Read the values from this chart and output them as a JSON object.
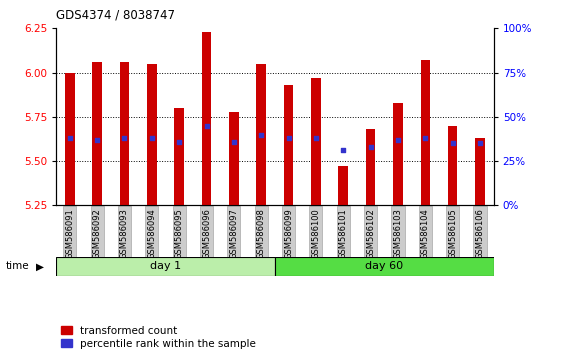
{
  "title": "GDS4374 / 8038747",
  "samples": [
    "GSM586091",
    "GSM586092",
    "GSM586093",
    "GSM586094",
    "GSM586095",
    "GSM586096",
    "GSM586097",
    "GSM586098",
    "GSM586099",
    "GSM586100",
    "GSM586101",
    "GSM586102",
    "GSM586103",
    "GSM586104",
    "GSM586105",
    "GSM586106"
  ],
  "bar_tops": [
    6.0,
    6.06,
    6.06,
    6.05,
    5.8,
    6.23,
    5.78,
    6.05,
    5.93,
    5.97,
    5.47,
    5.68,
    5.83,
    6.07,
    5.7,
    5.63
  ],
  "bar_base": 5.25,
  "blue_pos": [
    5.63,
    5.62,
    5.63,
    5.63,
    5.61,
    5.7,
    5.61,
    5.65,
    5.63,
    5.63,
    5.56,
    5.58,
    5.62,
    5.63,
    5.6,
    5.6
  ],
  "day1_count": 8,
  "day60_count": 8,
  "ylim": [
    5.25,
    6.25
  ],
  "yticks_left": [
    5.25,
    5.5,
    5.75,
    6.0,
    6.25
  ],
  "yticks_right": [
    0,
    25,
    50,
    75,
    100
  ],
  "bar_color": "#cc0000",
  "blue_color": "#3333cc",
  "day1_color": "#bbeeaa",
  "day60_color": "#55dd44",
  "grid_color": "#000000",
  "bg_plot": "#ffffff",
  "xtick_bg": "#cccccc",
  "legend_red_label": "transformed count",
  "legend_blue_label": "percentile rank within the sample",
  "time_label": "time",
  "day1_label": "day 1",
  "day60_label": "day 60",
  "gridlines_at": [
    5.5,
    5.75,
    6.0
  ]
}
